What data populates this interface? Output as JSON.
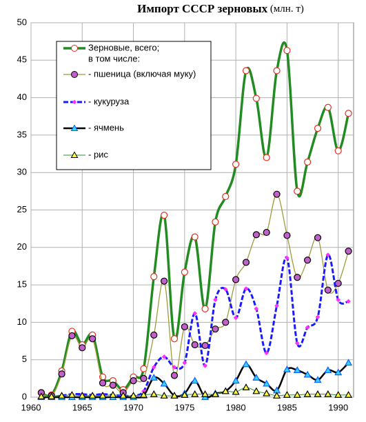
{
  "chart_data": {
    "type": "line",
    "title": "Импорт СССР зерновых",
    "unit": "(млн. т)",
    "x": [
      1961,
      1962,
      1963,
      1964,
      1965,
      1966,
      1967,
      1968,
      1969,
      1970,
      1971,
      1972,
      1973,
      1974,
      1975,
      1976,
      1977,
      1978,
      1979,
      1980,
      1981,
      1982,
      1983,
      1984,
      1985,
      1986,
      1987,
      1988,
      1989,
      1990,
      1991
    ],
    "legend_note": "в том числе:",
    "series": [
      {
        "name": "Зерновые, всего;",
        "color": "#228b22",
        "marker": "circle",
        "marker_fill": "#ffffff",
        "marker_stroke": "#e03020",
        "values": [
          0.6,
          0.3,
          3.5,
          8.8,
          7.0,
          8.3,
          2.7,
          2.2,
          1.0,
          2.7,
          3.8,
          16.1,
          24.3,
          7.8,
          16.7,
          21.4,
          11.8,
          23.4,
          26.8,
          31.1,
          43.6,
          39.9,
          32.0,
          43.6,
          46.3,
          27.5,
          31.4,
          35.9,
          38.7,
          32.9,
          37.9
        ]
      },
      {
        "name": "- пшеница (включая муку)",
        "color": "#a09a3a",
        "marker": "circle",
        "marker_fill": "#c060c8",
        "marker_stroke": "#000000",
        "values": [
          0.6,
          0.2,
          3.1,
          8.2,
          6.6,
          7.8,
          1.9,
          1.6,
          0.6,
          2.2,
          2.5,
          8.3,
          15.5,
          2.9,
          9.4,
          7.0,
          6.9,
          9.1,
          10.0,
          15.7,
          18.0,
          21.7,
          22.0,
          27.1,
          21.6,
          16.0,
          18.3,
          21.3,
          14.3,
          15.2,
          19.5
        ]
      },
      {
        "name": "- кукуруза",
        "color": "#1a1aff",
        "marker": "diamond",
        "marker_fill": "#ff30ff",
        "marker_stroke": "#ff30ff",
        "values": [
          0.0,
          0.0,
          0.2,
          0.4,
          0.4,
          0.3,
          0.4,
          0.3,
          0.2,
          0.2,
          0.8,
          4.0,
          5.4,
          4.0,
          4.6,
          11.2,
          4.2,
          13.0,
          14.4,
          10.6,
          14.5,
          11.8,
          5.9,
          12.2,
          18.6,
          7.2,
          9.3,
          10.7,
          19.0,
          13.0,
          12.8
        ]
      },
      {
        "name": "- ячмень",
        "color": "#000000",
        "marker": "triangle",
        "marker_fill": "#40d0ff",
        "marker_stroke": "#0060ff",
        "values": [
          0,
          0,
          0,
          0,
          0,
          0,
          0,
          0,
          0,
          0,
          0.2,
          2.6,
          1.8,
          0.2,
          0.5,
          2.2,
          0.0,
          0.5,
          0.8,
          2.2,
          4.4,
          2.6,
          1.8,
          0.9,
          3.7,
          3.6,
          3.0,
          2.3,
          3.6,
          3.3,
          4.6
        ]
      },
      {
        "name": "- рис",
        "color": "#2e8b2e",
        "marker": "triangle",
        "marker_fill": "#ffff40",
        "marker_stroke": "#000000",
        "values": [
          0.1,
          0.1,
          0.2,
          0.3,
          0.2,
          0.2,
          0.2,
          0.3,
          0.2,
          0.2,
          0.3,
          0.4,
          0.2,
          0.2,
          0.3,
          0.4,
          0.4,
          0.4,
          0.8,
          0.7,
          1.3,
          0.8,
          0.5,
          0.2,
          0.3,
          0.3,
          0.4,
          0.4,
          0.4,
          0.3,
          0.3
        ]
      }
    ],
    "xlim": [
      1960,
      1991.5
    ],
    "xticks": [
      1960,
      1965,
      1970,
      1975,
      1980,
      1985,
      1990
    ],
    "ylim": [
      0,
      50
    ],
    "yticks": [
      0,
      5,
      10,
      15,
      20,
      25,
      30,
      35,
      40,
      45,
      50
    ],
    "grid": true
  }
}
